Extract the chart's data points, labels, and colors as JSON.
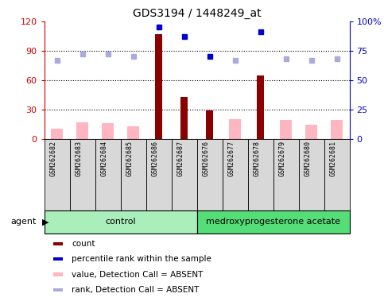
{
  "title": "GDS3194 / 1448249_at",
  "samples": [
    "GSM262682",
    "GSM262683",
    "GSM262684",
    "GSM262685",
    "GSM262686",
    "GSM262687",
    "GSM262676",
    "GSM262677",
    "GSM262678",
    "GSM262679",
    "GSM262680",
    "GSM262681"
  ],
  "count_values": [
    0,
    0,
    0,
    0,
    107,
    43,
    29,
    0,
    65,
    0,
    0,
    0
  ],
  "count_absent_values": [
    10,
    17,
    16,
    13,
    0,
    0,
    0,
    20,
    0,
    19,
    14,
    19
  ],
  "rank_values": [
    null,
    null,
    null,
    null,
    95,
    87,
    70,
    null,
    91,
    null,
    null,
    null
  ],
  "rank_absent_values": [
    67,
    72,
    72,
    70,
    null,
    null,
    null,
    67,
    null,
    68,
    67,
    68
  ],
  "ylim_left": [
    0,
    120
  ],
  "ylim_right": [
    0,
    100
  ],
  "yticks_left": [
    0,
    30,
    60,
    90,
    120
  ],
  "yticks_right": [
    0,
    25,
    50,
    75,
    100
  ],
  "ytick_labels_left": [
    "0",
    "30",
    "60",
    "90",
    "120"
  ],
  "ytick_labels_right": [
    "0",
    "25",
    "50",
    "75",
    "100%"
  ],
  "color_count": "#8B0000",
  "color_count_absent": "#FFB6C1",
  "color_rank": "#0000CC",
  "color_rank_absent": "#AAAADD",
  "left_axis_color": "#CC0000",
  "right_axis_color": "#0000CC",
  "control_color": "#AAEEBB",
  "medroxy_color": "#55DD77",
  "background_color": "#D8D8D8",
  "plot_bg": "#FFFFFF",
  "agent_label": "agent",
  "legend_items": [
    {
      "label": "count",
      "color": "#8B0000"
    },
    {
      "label": "percentile rank within the sample",
      "color": "#0000CC"
    },
    {
      "label": "value, Detection Call = ABSENT",
      "color": "#FFB6C1"
    },
    {
      "label": "rank, Detection Call = ABSENT",
      "color": "#AAAADD"
    }
  ]
}
